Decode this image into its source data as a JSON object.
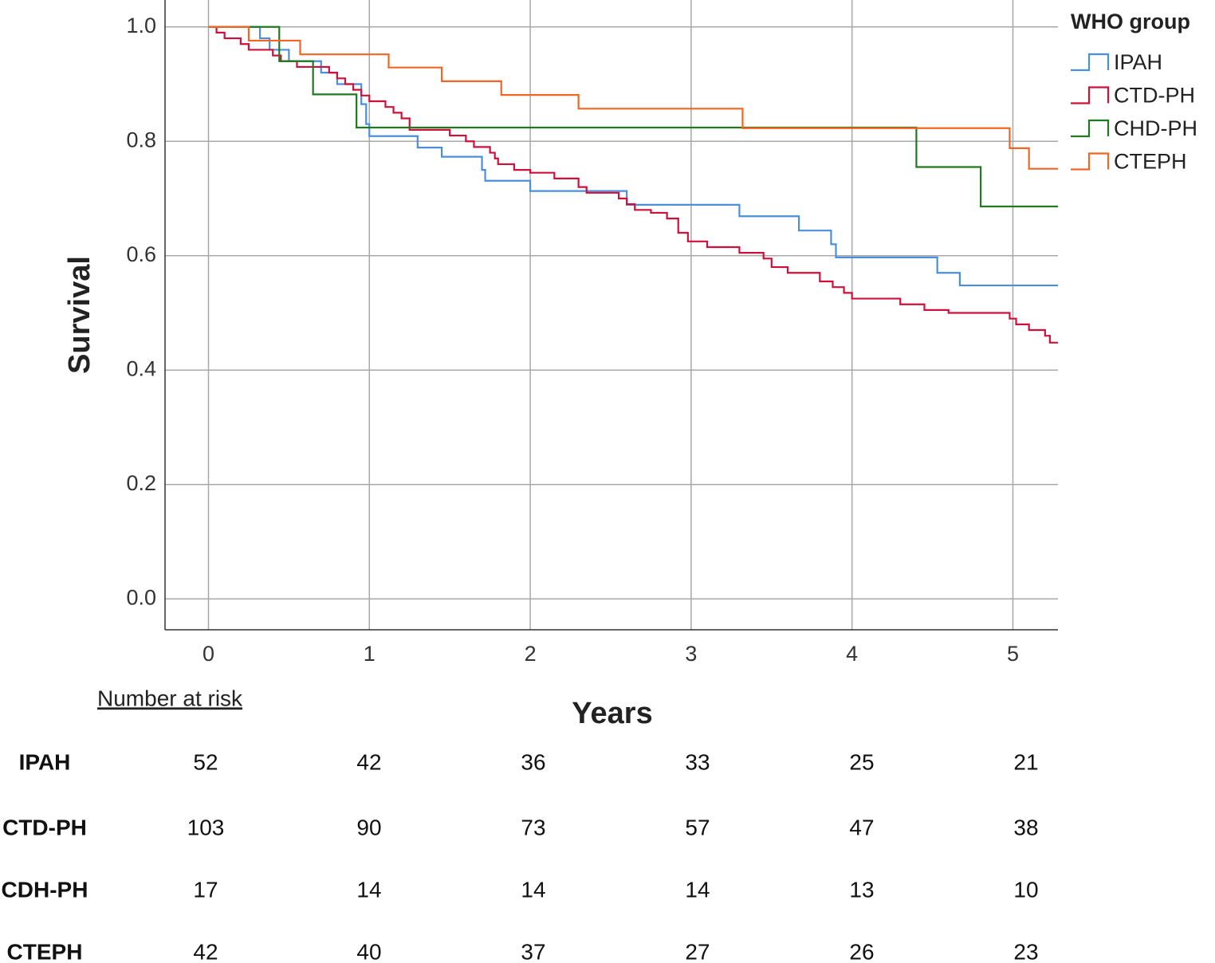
{
  "chart_data": {
    "type": "step",
    "xlabel": "Years",
    "ylabel": "Survival",
    "legend_title": "WHO group",
    "legend": "upper right outside",
    "grid": true,
    "xlim": [
      -0.27,
      5.28
    ],
    "ylim": [
      -0.054,
      1.047
    ],
    "xticks": [
      0,
      1,
      2,
      3,
      4,
      5
    ],
    "yticks": [
      {
        "value": 0,
        "label": "0.0"
      },
      {
        "value": 0.2,
        "label": "0.2"
      },
      {
        "value": 0.4,
        "label": "0.4"
      },
      {
        "value": 0.6,
        "label": "0.6"
      },
      {
        "value": 0.8,
        "label": "0.8"
      },
      {
        "value": 1,
        "label": "1.0"
      }
    ],
    "series": [
      {
        "name": "IPAH",
        "color": "#4a8fdb",
        "x": [
          0,
          0.32,
          0.38,
          0.5,
          0.7,
          0.8,
          0.95,
          0.98,
          1.0,
          1.3,
          1.45,
          1.7,
          1.72,
          2.0,
          2.6,
          3.3,
          3.67,
          3.87,
          3.9,
          4.53,
          4.67,
          5.28
        ],
        "values": [
          1.0,
          0.98,
          0.96,
          0.94,
          0.92,
          0.9,
          0.865,
          0.83,
          0.809,
          0.789,
          0.773,
          0.75,
          0.731,
          0.713,
          0.689,
          0.669,
          0.644,
          0.62,
          0.597,
          0.57,
          0.548,
          0.548
        ]
      },
      {
        "name": "CTD-PH",
        "color": "#d0103a",
        "x": [
          0,
          0.05,
          0.1,
          0.2,
          0.25,
          0.4,
          0.45,
          0.55,
          0.75,
          0.8,
          0.85,
          0.9,
          0.95,
          1.0,
          1.1,
          1.15,
          1.2,
          1.25,
          1.5,
          1.6,
          1.65,
          1.75,
          1.78,
          1.8,
          1.9,
          2.0,
          2.15,
          2.3,
          2.35,
          2.55,
          2.6,
          2.65,
          2.75,
          2.85,
          2.92,
          2.98,
          3.1,
          3.3,
          3.45,
          3.5,
          3.6,
          3.8,
          3.88,
          3.95,
          4.0,
          4.3,
          4.45,
          4.6,
          4.98,
          5.02,
          5.1,
          5.2,
          5.23,
          5.28
        ],
        "values": [
          1.0,
          0.99,
          0.98,
          0.97,
          0.96,
          0.95,
          0.94,
          0.93,
          0.92,
          0.91,
          0.9,
          0.89,
          0.88,
          0.87,
          0.86,
          0.85,
          0.84,
          0.82,
          0.81,
          0.8,
          0.79,
          0.78,
          0.77,
          0.76,
          0.75,
          0.745,
          0.735,
          0.72,
          0.71,
          0.7,
          0.69,
          0.68,
          0.675,
          0.665,
          0.64,
          0.625,
          0.615,
          0.605,
          0.595,
          0.58,
          0.57,
          0.555,
          0.545,
          0.535,
          0.525,
          0.515,
          0.505,
          0.5,
          0.49,
          0.48,
          0.47,
          0.46,
          0.448,
          0.448
        ]
      },
      {
        "name": "CHD-PH",
        "color": "#1f7a1f",
        "x": [
          0,
          0.44,
          0.65,
          0.92,
          4.4,
          4.8,
          5.28
        ],
        "values": [
          1.0,
          0.94,
          0.882,
          0.824,
          0.755,
          0.686,
          0.686
        ]
      },
      {
        "name": "CTEPH",
        "color": "#f26522",
        "x": [
          0,
          0.25,
          0.57,
          1.12,
          1.45,
          1.82,
          2.3,
          3.32,
          4.98,
          5.1,
          5.28
        ],
        "values": [
          1.0,
          0.976,
          0.952,
          0.929,
          0.905,
          0.881,
          0.857,
          0.823,
          0.788,
          0.752,
          0.752
        ]
      }
    ]
  },
  "risk_table": {
    "title": "Number at risk",
    "rows": [
      {
        "name": "IPAH",
        "values": [
          52,
          42,
          36,
          33,
          25,
          21
        ]
      },
      {
        "name": "CTD-PH",
        "values": [
          103,
          90,
          73,
          57,
          47,
          38
        ]
      },
      {
        "name": "CDH-PH",
        "values": [
          17,
          14,
          14,
          14,
          13,
          10
        ]
      },
      {
        "name": "CTEPH",
        "values": [
          42,
          40,
          37,
          27,
          26,
          23
        ]
      }
    ]
  }
}
